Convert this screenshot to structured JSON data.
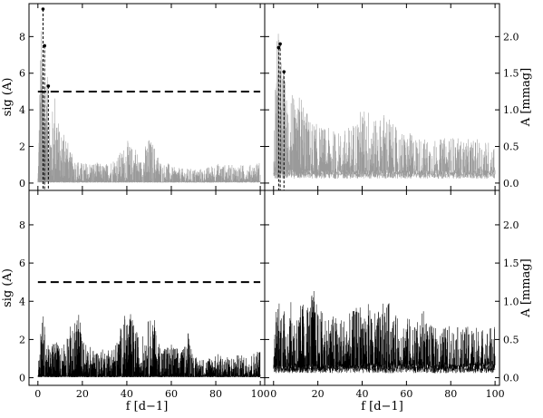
{
  "chart_data": [
    {
      "panel": "top-left",
      "type": "line",
      "xlim": [
        -4,
        102
      ],
      "ylim": [
        -0.4,
        9.8
      ],
      "xticks": [
        0,
        20,
        40,
        60,
        80,
        100
      ],
      "yticks": [
        0,
        2,
        4,
        6,
        8
      ],
      "y_axis_side": "left",
      "ylabel": "sig (A)",
      "xlabel": "",
      "threshold": 5.0,
      "color": "#9a9a9a",
      "peaks": [
        {
          "x": 2.3,
          "y": 9.5
        },
        {
          "x": 3.0,
          "y": 7.5
        },
        {
          "x": 4.7,
          "y": 5.3
        }
      ],
      "series_envelope": {
        "x": [
          0,
          1,
          2,
          3,
          4,
          5,
          6,
          8,
          10,
          12,
          14,
          16,
          18,
          20,
          25,
          30,
          35,
          38,
          40,
          42,
          44,
          46,
          48,
          50,
          52,
          54,
          56,
          58,
          60,
          65,
          70,
          75,
          80,
          85,
          90,
          95,
          100
        ],
        "y": [
          0.5,
          7.3,
          9.5,
          7.5,
          6.0,
          5.3,
          3.5,
          5.6,
          2.5,
          3.8,
          1.8,
          1.5,
          1.3,
          1.1,
          1.2,
          1.0,
          1.5,
          1.8,
          2.4,
          2.0,
          2.1,
          1.2,
          2.0,
          2.5,
          2.2,
          1.6,
          1.0,
          1.2,
          0.9,
          0.8,
          0.8,
          0.8,
          1.1,
          1.0,
          1.0,
          1.0,
          1.2
        ]
      }
    },
    {
      "panel": "top-right",
      "type": "line",
      "xlim": [
        -4,
        102
      ],
      "ylim": [
        -0.1,
        2.45
      ],
      "xticks": [
        0,
        20,
        40,
        60,
        80,
        100
      ],
      "yticks": [
        0.0,
        0.5,
        1.0,
        1.5,
        2.0
      ],
      "y_axis_side": "right",
      "ylabel": "A [mmag]",
      "xlabel": "",
      "color": "#9a9a9a",
      "peaks": [
        {
          "x": 2.3,
          "y": 1.85
        },
        {
          "x": 3.0,
          "y": 1.9
        },
        {
          "x": 4.7,
          "y": 1.52
        }
      ],
      "series_envelope": {
        "x": [
          0,
          1,
          2,
          3,
          4,
          5,
          6,
          8,
          10,
          12,
          14,
          16,
          18,
          20,
          25,
          30,
          35,
          38,
          40,
          42,
          44,
          46,
          48,
          50,
          52,
          54,
          56,
          58,
          60,
          65,
          70,
          75,
          80,
          85,
          90,
          95,
          100
        ],
        "y": [
          0.3,
          1.8,
          2.2,
          1.9,
          1.6,
          1.5,
          1.2,
          1.5,
          0.9,
          1.3,
          1.1,
          0.9,
          0.85,
          0.8,
          0.75,
          0.7,
          0.8,
          0.95,
          1.05,
          1.0,
          1.1,
          0.85,
          0.9,
          1.0,
          0.95,
          0.8,
          0.75,
          0.7,
          0.7,
          0.65,
          0.6,
          0.6,
          0.65,
          0.6,
          0.6,
          0.6,
          0.55
        ]
      }
    },
    {
      "panel": "bottom-left",
      "type": "line",
      "xlim": [
        -4,
        102
      ],
      "ylim": [
        -0.4,
        9.8
      ],
      "xticks": [
        0,
        20,
        40,
        60,
        80,
        100
      ],
      "yticks": [
        0,
        2,
        4,
        6,
        8
      ],
      "y_axis_side": "left",
      "ylabel": "sig (A)",
      "xlabel": "f [d−1]",
      "threshold": 5.0,
      "color": "#000000",
      "peaks": [],
      "series_envelope": {
        "x": [
          0,
          1,
          2,
          3,
          4,
          5,
          8,
          10,
          14,
          16,
          18,
          20,
          25,
          30,
          35,
          38,
          40,
          42,
          44,
          46,
          48,
          50,
          52,
          54,
          56,
          60,
          65,
          68,
          70,
          75,
          80,
          85,
          90,
          95,
          100
        ],
        "y": [
          0.4,
          2.0,
          3.7,
          2.8,
          2.0,
          1.5,
          2.3,
          1.5,
          2.8,
          2.5,
          4.1,
          2.0,
          1.5,
          1.5,
          1.8,
          3.0,
          3.6,
          3.3,
          2.6,
          2.0,
          2.4,
          3.2,
          3.3,
          2.0,
          1.7,
          1.8,
          1.4,
          2.8,
          1.1,
          1.0,
          1.3,
          1.1,
          1.2,
          1.2,
          1.6
        ]
      }
    },
    {
      "panel": "bottom-right",
      "type": "line",
      "xlim": [
        -4,
        102
      ],
      "ylim": [
        -0.1,
        2.45
      ],
      "xticks": [
        0,
        20,
        40,
        60,
        80,
        100
      ],
      "yticks": [
        0.0,
        0.5,
        1.0,
        1.5,
        2.0
      ],
      "y_axis_side": "right",
      "ylabel": "A [mmag]",
      "xlabel": "f [d−1]",
      "color": "#000000",
      "peaks": [],
      "series_envelope": {
        "x": [
          0,
          1,
          2,
          3,
          4,
          5,
          8,
          10,
          14,
          16,
          18,
          20,
          25,
          30,
          35,
          38,
          40,
          42,
          44,
          46,
          48,
          50,
          52,
          54,
          56,
          60,
          65,
          68,
          70,
          75,
          80,
          85,
          90,
          95,
          100
        ],
        "y": [
          0.3,
          0.9,
          1.2,
          1.1,
          0.95,
          0.9,
          1.0,
          0.85,
          1.05,
          1.0,
          1.2,
          0.9,
          0.85,
          0.8,
          0.85,
          0.95,
          1.05,
          1.0,
          0.95,
          0.85,
          0.9,
          1.0,
          1.0,
          0.85,
          0.8,
          0.8,
          0.75,
          0.9,
          0.7,
          0.65,
          0.7,
          0.65,
          0.7,
          0.65,
          0.7
        ]
      }
    }
  ]
}
